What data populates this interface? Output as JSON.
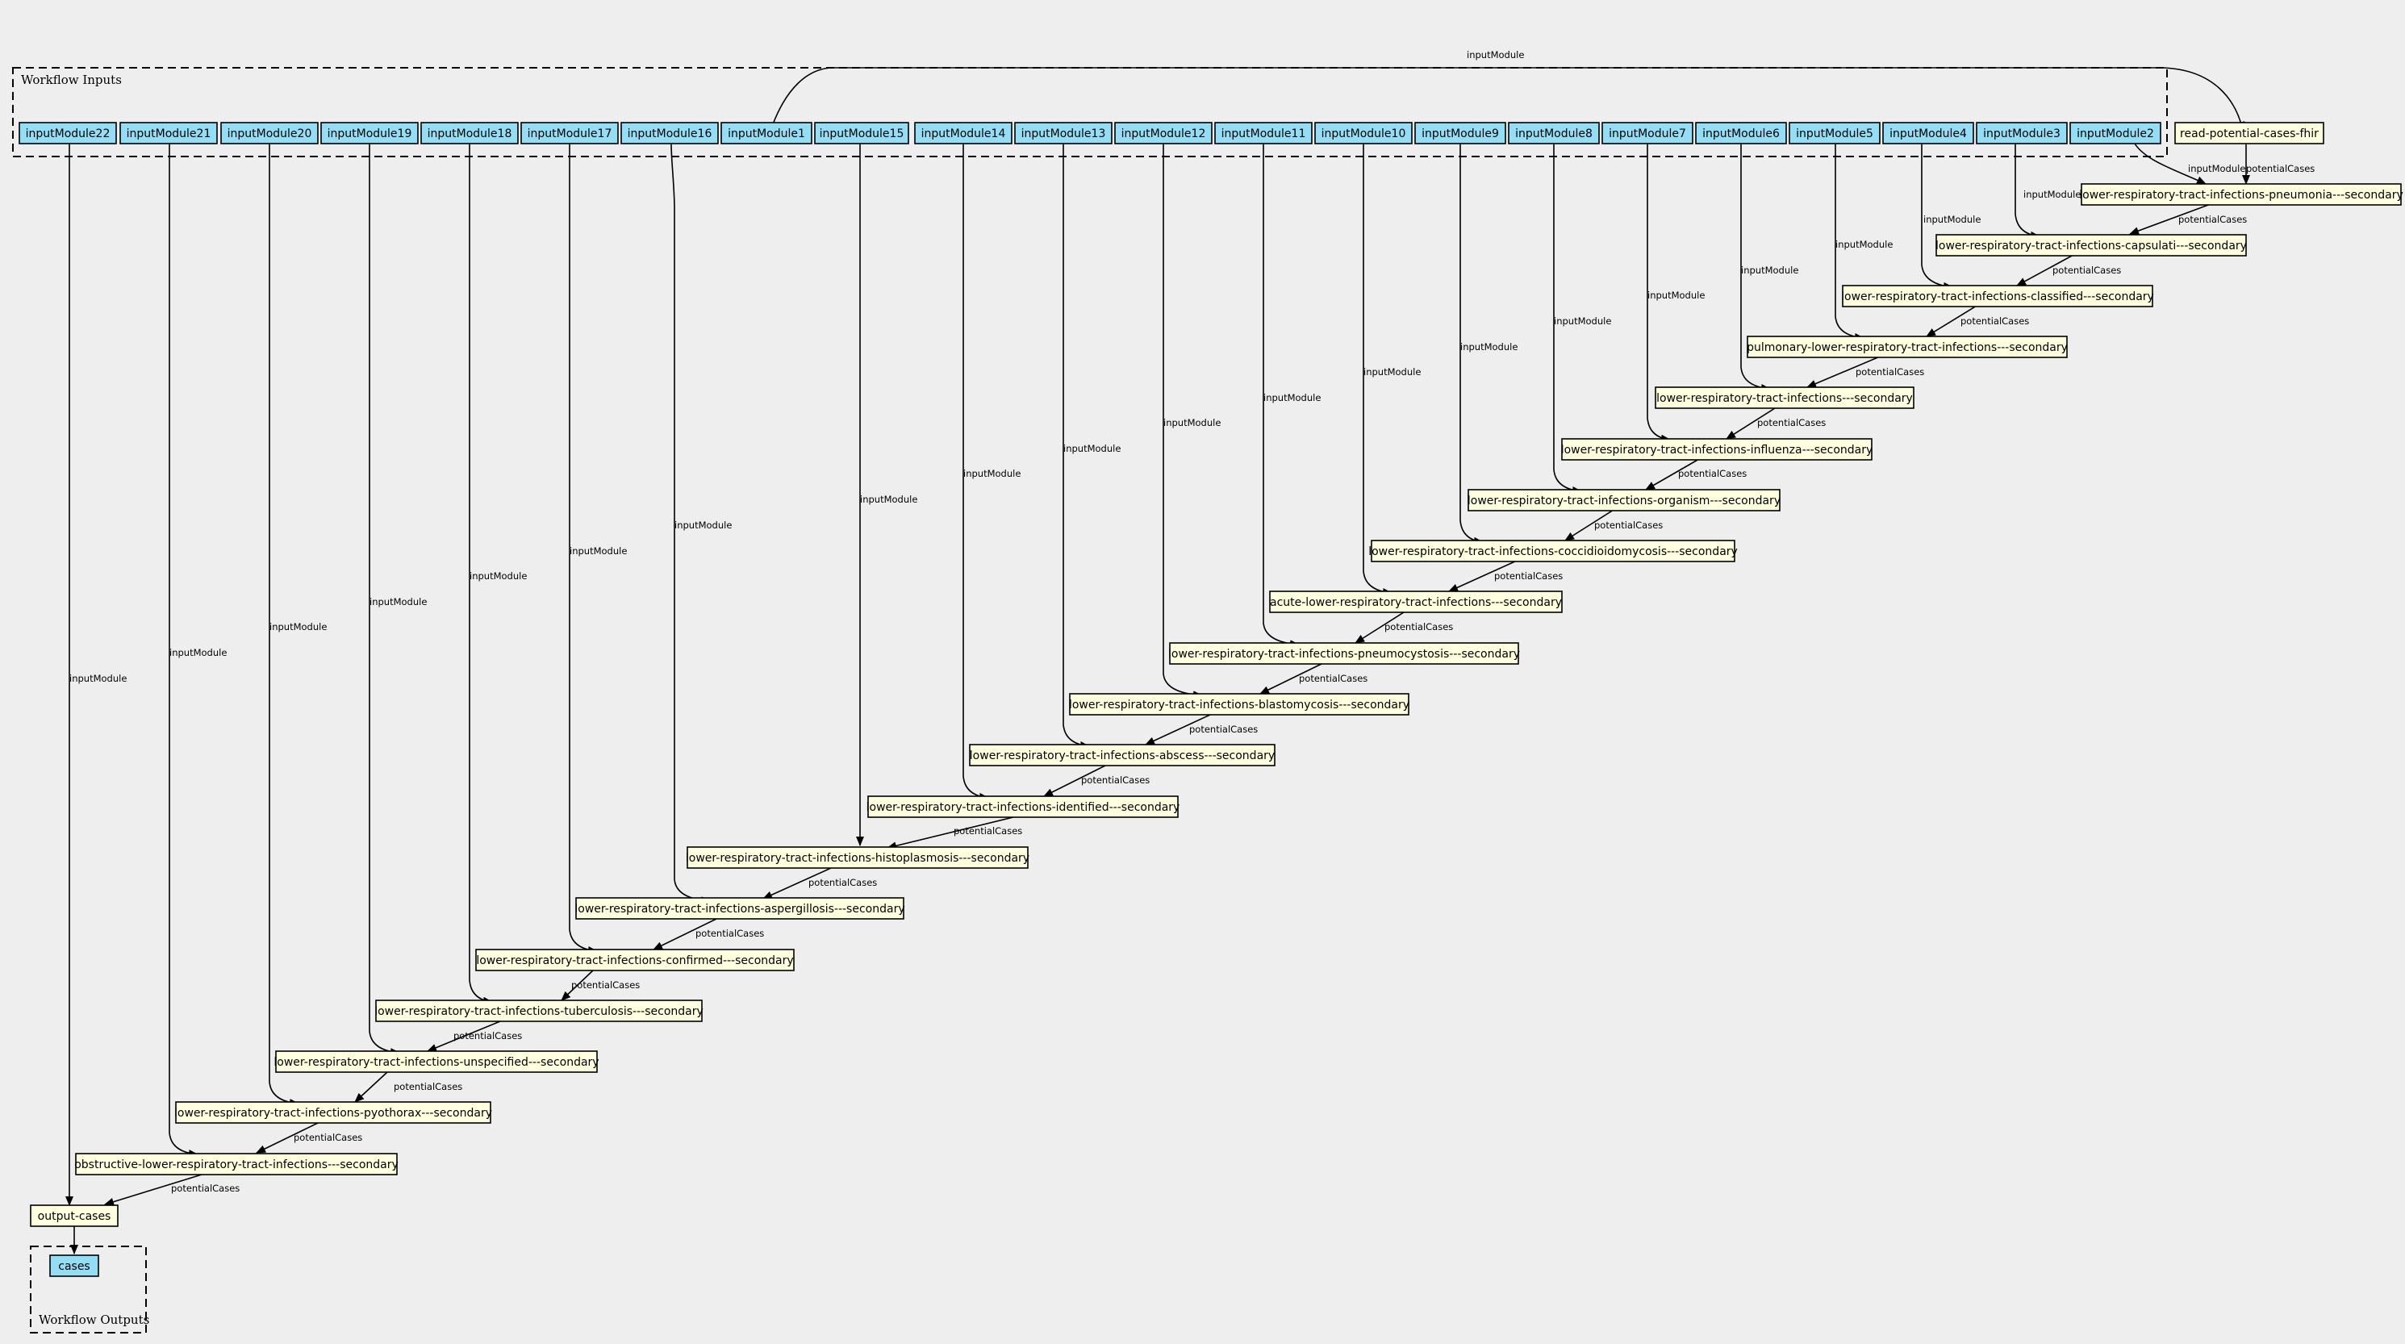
{
  "clusters": {
    "inputs_label": "Workflow Inputs",
    "outputs_label": "Workflow Outputs"
  },
  "inputs": {
    "m22": "inputModule22",
    "m21": "inputModule21",
    "m20": "inputModule20",
    "m19": "inputModule19",
    "m18": "inputModule18",
    "m17": "inputModule17",
    "m16": "inputModule16",
    "m1": "inputModule1",
    "m15": "inputModule15",
    "m14": "inputModule14",
    "m13": "inputModule13",
    "m12": "inputModule12",
    "m11": "inputModule11",
    "m10": "inputModule10",
    "m9": "inputModule9",
    "m8": "inputModule8",
    "m7": "inputModule7",
    "m6": "inputModule6",
    "m5": "inputModule5",
    "m4": "inputModule4",
    "m3": "inputModule3",
    "m2": "inputModule2"
  },
  "steps": {
    "read": "read-potential-cases-fhir",
    "pneumonia": "lower-respiratory-tract-infections-pneumonia---secondary",
    "capsulati": "lower-respiratory-tract-infections-capsulati---secondary",
    "classified": "lower-respiratory-tract-infections-classified---secondary",
    "pulmonary": "pulmonary-lower-respiratory-tract-infections---secondary",
    "lrti": "lower-respiratory-tract-infections---secondary",
    "influenza": "lower-respiratory-tract-infections-influenza---secondary",
    "organism": "lower-respiratory-tract-infections-organism---secondary",
    "coccidioidomycosis": "lower-respiratory-tract-infections-coccidioidomycosis---secondary",
    "acute": "acute-lower-respiratory-tract-infections---secondary",
    "pneumocystosis": "lower-respiratory-tract-infections-pneumocystosis---secondary",
    "blastomycosis": "lower-respiratory-tract-infections-blastomycosis---secondary",
    "abscess": "lower-respiratory-tract-infections-abscess---secondary",
    "identified": "lower-respiratory-tract-infections-identified---secondary",
    "histoplasmosis": "lower-respiratory-tract-infections-histoplasmosis---secondary",
    "aspergillosis": "lower-respiratory-tract-infections-aspergillosis---secondary",
    "confirmed": "lower-respiratory-tract-infections-confirmed---secondary",
    "tuberculosis": "lower-respiratory-tract-infections-tuberculosis---secondary",
    "unspecified": "lower-respiratory-tract-infections-unspecified---secondary",
    "pyothorax": "lower-respiratory-tract-infections-pyothorax---secondary",
    "obstructive": "obstructive-lower-respiratory-tract-infections---secondary",
    "output": "output-cases"
  },
  "outputs": {
    "cases": "cases"
  },
  "edge_labels": {
    "input_module": "inputModule",
    "potential_cases": "potentialCases"
  }
}
